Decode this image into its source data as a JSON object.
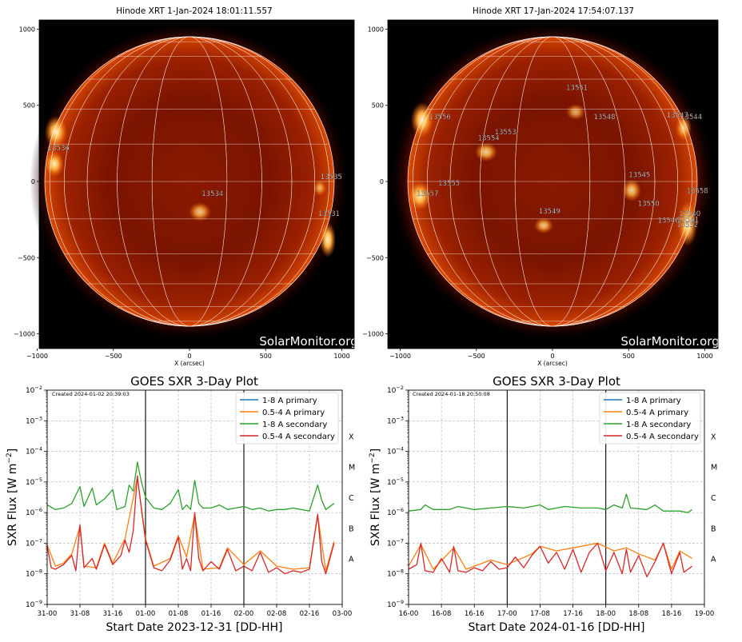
{
  "images": [
    {
      "title": "Hinode XRT  1-Jan-2024 18:01:11.557",
      "watermark": "SolarMonitor.org",
      "xlabel": "X (arcsec)",
      "xticks": [
        "−1000",
        "−500",
        "0",
        "500",
        "1000"
      ],
      "yticks": [
        "1000",
        "500",
        "0",
        "−500",
        "−1000"
      ],
      "regions": [
        {
          "label": "13536",
          "x": -930,
          "y": 205
        },
        {
          "label": "13535",
          "x": 860,
          "y": 15
        },
        {
          "label": "13534",
          "x": 80,
          "y": -95
        },
        {
          "label": "13531",
          "x": 845,
          "y": -225
        }
      ]
    },
    {
      "title": "Hinode XRT 17-Jan-2024 17:54:07.137",
      "watermark": "SolarMonitor.org",
      "xlabel": "X (arcsec)",
      "xticks": [
        "−1000",
        "−500",
        "0",
        "500",
        "1000"
      ],
      "yticks": [
        "1000",
        "500",
        "0",
        "−500",
        "−1000"
      ],
      "regions": [
        {
          "label": "13551",
          "x": 90,
          "y": 600
        },
        {
          "label": "13556",
          "x": -810,
          "y": 410
        },
        {
          "label": "13548",
          "x": 270,
          "y": 410
        },
        {
          "label": "13547",
          "x": 750,
          "y": 420
        },
        {
          "label": "13544",
          "x": 840,
          "y": 410
        },
        {
          "label": "13553",
          "x": -380,
          "y": 310
        },
        {
          "label": "13554",
          "x": -490,
          "y": 270
        },
        {
          "label": "13545",
          "x": 500,
          "y": 30
        },
        {
          "label": "13555",
          "x": -750,
          "y": -25
        },
        {
          "label": "13557",
          "x": -890,
          "y": -95
        },
        {
          "label": "13558",
          "x": 880,
          "y": -75
        },
        {
          "label": "13550",
          "x": 560,
          "y": -160
        },
        {
          "label": "13549",
          "x": -90,
          "y": -210
        },
        {
          "label": "13546",
          "x": 690,
          "y": -270
        },
        {
          "label": "13540",
          "x": 830,
          "y": -225
        },
        {
          "label": "13541",
          "x": 820,
          "y": -265
        },
        {
          "label": "13552",
          "x": 815,
          "y": -300
        }
      ]
    }
  ],
  "chart_data": [
    {
      "type": "line",
      "title": "GOES SXR 3-Day Plot",
      "created": "Created 2024-01-02 20:39:03",
      "xlabel": "Start Date 2023-12-31 [DD-HH]",
      "ylabel": "SXR Flux [W m",
      "ylabel_sup": "−2",
      "ylabel_end": "]",
      "xticks": [
        "31-00",
        "31-08",
        "31-16",
        "01-00",
        "01-08",
        "01-16",
        "02-00",
        "02-08",
        "02-16",
        "03-00"
      ],
      "xlim_hours": [
        0,
        72
      ],
      "yscale": "log",
      "ylim_exp": [
        -9,
        -2
      ],
      "class_letters": [
        "X",
        "M",
        "C",
        "B",
        "A"
      ],
      "day_lines_hours": [
        24,
        48
      ],
      "grid": true,
      "legend_position": "top-right",
      "legend": [
        "1-8 A primary",
        "0.5-4 A primary",
        "1-8 A secondary",
        "0.5-4 A secondary"
      ],
      "series_colors": [
        "#1f77b4",
        "#ff7f0e",
        "#2ca02c",
        "#d62728"
      ],
      "series": [
        {
          "name": "1-8 A secondary",
          "log10_flux_points": [
            [
              0,
              -5.75
            ],
            [
              2,
              -5.9
            ],
            [
              4,
              -5.85
            ],
            [
              6,
              -5.7
            ],
            [
              8,
              -5.15
            ],
            [
              9,
              -5.8
            ],
            [
              11,
              -5.2
            ],
            [
              12,
              -5.75
            ],
            [
              14,
              -5.55
            ],
            [
              16,
              -5.25
            ],
            [
              17,
              -5.9
            ],
            [
              19,
              -5.8
            ],
            [
              20,
              -5.1
            ],
            [
              21,
              -5.3
            ],
            [
              22,
              -4.35
            ],
            [
              23,
              -5.0
            ],
            [
              24,
              -5.5
            ],
            [
              26,
              -5.85
            ],
            [
              28,
              -5.9
            ],
            [
              30,
              -5.7
            ],
            [
              32,
              -5.25
            ],
            [
              33,
              -5.9
            ],
            [
              34,
              -5.75
            ],
            [
              35,
              -5.9
            ],
            [
              36,
              -4.95
            ],
            [
              37,
              -5.7
            ],
            [
              38,
              -5.85
            ],
            [
              40,
              -5.85
            ],
            [
              42,
              -5.75
            ],
            [
              44,
              -5.9
            ],
            [
              46,
              -5.85
            ],
            [
              48,
              -5.8
            ],
            [
              50,
              -5.9
            ],
            [
              52,
              -5.85
            ],
            [
              54,
              -5.95
            ],
            [
              56,
              -5.9
            ],
            [
              58,
              -5.9
            ],
            [
              60,
              -5.85
            ],
            [
              62,
              -5.9
            ],
            [
              64,
              -5.95
            ],
            [
              66,
              -5.1
            ],
            [
              67,
              -5.6
            ],
            [
              68,
              -5.9
            ],
            [
              70,
              -5.7
            ]
          ]
        },
        {
          "name": "0.5-4 A secondary",
          "log10_flux_points": [
            [
              0,
              -7.1
            ],
            [
              1,
              -7.8
            ],
            [
              2,
              -7.85
            ],
            [
              4,
              -7.7
            ],
            [
              6,
              -7.4
            ],
            [
              7,
              -7.9
            ],
            [
              8,
              -6.4
            ],
            [
              9,
              -7.8
            ],
            [
              11,
              -7.5
            ],
            [
              12,
              -7.85
            ],
            [
              14,
              -7.05
            ],
            [
              16,
              -7.7
            ],
            [
              18,
              -7.4
            ],
            [
              19,
              -6.9
            ],
            [
              20,
              -7.3
            ],
            [
              21,
              -6.6
            ],
            [
              22,
              -4.8
            ],
            [
              23,
              -5.9
            ],
            [
              24,
              -6.9
            ],
            [
              26,
              -7.8
            ],
            [
              28,
              -7.9
            ],
            [
              30,
              -7.55
            ],
            [
              32,
              -6.8
            ],
            [
              33,
              -7.85
            ],
            [
              34,
              -7.5
            ],
            [
              35,
              -7.9
            ],
            [
              36,
              -6.0
            ],
            [
              37,
              -7.5
            ],
            [
              38,
              -7.9
            ],
            [
              40,
              -7.6
            ],
            [
              42,
              -7.85
            ],
            [
              44,
              -7.2
            ],
            [
              46,
              -7.9
            ],
            [
              48,
              -7.75
            ],
            [
              50,
              -7.9
            ],
            [
              52,
              -7.3
            ],
            [
              54,
              -7.95
            ],
            [
              56,
              -7.8
            ],
            [
              58,
              -8.0
            ],
            [
              60,
              -7.9
            ],
            [
              62,
              -7.95
            ],
            [
              64,
              -7.85
            ],
            [
              66,
              -6.05
            ],
            [
              67,
              -7.6
            ],
            [
              68,
              -8.0
            ],
            [
              70,
              -7.0
            ]
          ]
        },
        {
          "name": "0.5-4 A primary",
          "log10_flux_points": [
            [
              0,
              -7.05
            ],
            [
              2,
              -7.75
            ],
            [
              4,
              -7.65
            ],
            [
              6,
              -7.35
            ],
            [
              8,
              -6.45
            ],
            [
              9,
              -7.75
            ],
            [
              12,
              -7.8
            ],
            [
              14,
              -7.0
            ],
            [
              16,
              -7.65
            ],
            [
              19,
              -6.85
            ],
            [
              22,
              -4.85
            ],
            [
              24,
              -6.85
            ],
            [
              26,
              -7.75
            ],
            [
              30,
              -7.5
            ],
            [
              32,
              -6.75
            ],
            [
              34,
              -7.45
            ],
            [
              36,
              -6.05
            ],
            [
              38,
              -7.85
            ],
            [
              42,
              -7.8
            ],
            [
              44,
              -7.15
            ],
            [
              48,
              -7.7
            ],
            [
              52,
              -7.25
            ],
            [
              56,
              -7.75
            ],
            [
              60,
              -7.85
            ],
            [
              64,
              -7.8
            ],
            [
              66,
              -6.1
            ],
            [
              68,
              -7.9
            ],
            [
              70,
              -6.95
            ]
          ]
        }
      ]
    },
    {
      "type": "line",
      "title": "GOES SXR 3-Day Plot",
      "created": "Created 2024-01-18 20:50:08",
      "xlabel": "Start Date 2024-01-16 [DD-HH]",
      "ylabel": "SXR Flux [W m",
      "ylabel_sup": "−2",
      "ylabel_end": "]",
      "xticks": [
        "16-00",
        "16-08",
        "16-16",
        "17-00",
        "17-08",
        "17-16",
        "18-00",
        "18-08",
        "18-16",
        "19-00"
      ],
      "xlim_hours": [
        0,
        72
      ],
      "yscale": "log",
      "ylim_exp": [
        -9,
        -2
      ],
      "class_letters": [
        "X",
        "M",
        "C",
        "B",
        "A"
      ],
      "day_lines_hours": [
        24,
        48
      ],
      "grid": true,
      "legend_position": "top-right",
      "legend": [
        "1-8 A primary",
        "0.5-4 A primary",
        "1-8 A secondary",
        "0.5-4 A secondary"
      ],
      "series_colors": [
        "#1f77b4",
        "#ff7f0e",
        "#2ca02c",
        "#d62728"
      ],
      "series": [
        {
          "name": "1-8 A secondary",
          "log10_flux_points": [
            [
              0,
              -5.95
            ],
            [
              3,
              -5.9
            ],
            [
              4,
              -5.75
            ],
            [
              6,
              -5.9
            ],
            [
              10,
              -5.9
            ],
            [
              12,
              -5.8
            ],
            [
              16,
              -5.9
            ],
            [
              20,
              -5.85
            ],
            [
              24,
              -5.8
            ],
            [
              28,
              -5.85
            ],
            [
              32,
              -5.75
            ],
            [
              34,
              -5.9
            ],
            [
              38,
              -5.8
            ],
            [
              42,
              -5.85
            ],
            [
              46,
              -5.85
            ],
            [
              48,
              -5.9
            ],
            [
              50,
              -5.75
            ],
            [
              52,
              -5.85
            ],
            [
              53,
              -5.4
            ],
            [
              54,
              -5.85
            ],
            [
              58,
              -5.9
            ],
            [
              60,
              -5.75
            ],
            [
              62,
              -5.95
            ],
            [
              66,
              -5.95
            ],
            [
              68,
              -6.0
            ],
            [
              69,
              -5.9
            ]
          ]
        },
        {
          "name": "0.5-4 A secondary",
          "log10_flux_points": [
            [
              0,
              -7.85
            ],
            [
              2,
              -7.7
            ],
            [
              3,
              -7.0
            ],
            [
              4,
              -7.9
            ],
            [
              6,
              -7.95
            ],
            [
              8,
              -7.5
            ],
            [
              10,
              -7.95
            ],
            [
              11,
              -7.1
            ],
            [
              12,
              -7.9
            ],
            [
              14,
              -7.95
            ],
            [
              16,
              -7.8
            ],
            [
              18,
              -7.9
            ],
            [
              20,
              -7.6
            ],
            [
              22,
              -7.85
            ],
            [
              24,
              -7.8
            ],
            [
              26,
              -7.45
            ],
            [
              28,
              -7.8
            ],
            [
              30,
              -7.4
            ],
            [
              32,
              -7.1
            ],
            [
              34,
              -7.65
            ],
            [
              36,
              -7.3
            ],
            [
              38,
              -7.85
            ],
            [
              40,
              -7.2
            ],
            [
              42,
              -7.95
            ],
            [
              44,
              -7.3
            ],
            [
              46,
              -7.0
            ],
            [
              48,
              -7.9
            ],
            [
              50,
              -7.3
            ],
            [
              52,
              -8.0
            ],
            [
              53,
              -7.2
            ],
            [
              54,
              -7.95
            ],
            [
              56,
              -7.4
            ],
            [
              58,
              -8.1
            ],
            [
              60,
              -7.6
            ],
            [
              62,
              -7.0
            ],
            [
              64,
              -8.0
            ],
            [
              66,
              -7.3
            ],
            [
              67,
              -7.95
            ],
            [
              69,
              -7.75
            ]
          ]
        },
        {
          "name": "0.5-4 A primary",
          "log10_flux_points": [
            [
              0,
              -7.75
            ],
            [
              3,
              -7.05
            ],
            [
              6,
              -7.85
            ],
            [
              11,
              -7.15
            ],
            [
              14,
              -7.85
            ],
            [
              20,
              -7.55
            ],
            [
              24,
              -7.7
            ],
            [
              30,
              -7.35
            ],
            [
              32,
              -7.1
            ],
            [
              36,
              -7.25
            ],
            [
              40,
              -7.15
            ],
            [
              46,
              -7.0
            ],
            [
              50,
              -7.25
            ],
            [
              53,
              -7.15
            ],
            [
              56,
              -7.35
            ],
            [
              60,
              -7.55
            ],
            [
              62,
              -7.0
            ],
            [
              64,
              -7.85
            ],
            [
              66,
              -7.25
            ],
            [
              69,
              -7.5
            ]
          ]
        }
      ]
    }
  ]
}
